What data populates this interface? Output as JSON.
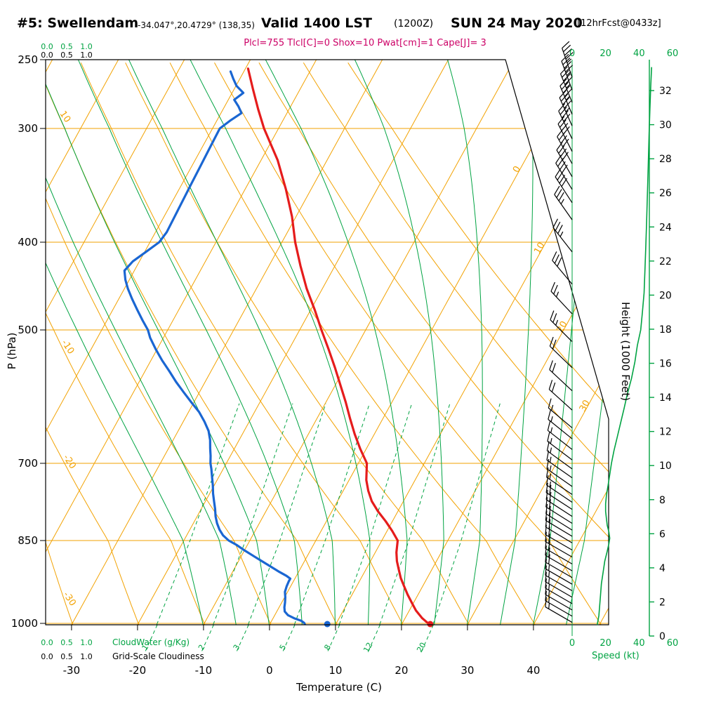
{
  "header": {
    "station": "#5: Swellendam",
    "coords": "-34.047°,20.4729° (138,35)",
    "valid_label": "Valid 1400 LST",
    "valid_zulu": "(1200Z)",
    "valid_date": "SUN 24 May 2020",
    "forecast_tag": "[12hrFcst@0433z]",
    "params_line": "Plcl=755 Tlcl[C]=0 Shox=10 Pwat[cm]=1 Cape[J]= 3"
  },
  "axes": {
    "pressure_axis_label": "P (hPa)",
    "pressure_ticks_hpa": [
      250,
      300,
      400,
      500,
      700,
      850,
      1000
    ],
    "temperature_axis_label": "Temperature (C)",
    "temperature_ticks_c": [
      -30,
      -20,
      -10,
      0,
      10,
      20,
      30,
      40
    ],
    "height_axis_label": "Height (1000 Feet)",
    "height_ticks_kft": [
      0,
      2,
      4,
      6,
      8,
      10,
      12,
      14,
      16,
      18,
      20,
      22,
      24,
      26,
      28,
      30,
      32
    ],
    "speed_axis_label": "Speed (kt)",
    "speed_ticks_kt": [
      0,
      20,
      40,
      60
    ],
    "cloudwater_label": "CloudWater (g/Kg)",
    "cloudiness_label": "Grid-Scale Cloudiness",
    "cloud_scale_values": [
      "0.0",
      "0.5",
      "1.0"
    ]
  },
  "colors": {
    "grid_orange": "#f2a202",
    "line_green": "#00a342",
    "temp_red": "#e51c1c",
    "dewpoint_blue": "#1a66d2",
    "params_magenta": "#cc0066",
    "ink_black": "#000000",
    "background": "#ffffff"
  },
  "chart_data": {
    "type": "line",
    "variant": "skew-t-log-p-sounding",
    "pressure_range_hpa": [
      250,
      1000
    ],
    "isotherm_range_c": [
      -80,
      50,
      10
    ],
    "dry_adiabat_theta_c": [
      -40,
      80,
      10
    ],
    "moist_adiabat_thetaw_c": [
      -10,
      45,
      5
    ],
    "isotherm_labels_right_c": [
      0,
      10,
      20,
      30
    ],
    "dry_adiabat_labels_left_c": [
      10,
      -10,
      -20,
      -30
    ],
    "mixing_ratio_lines_gkg": [
      1,
      2,
      3,
      5,
      8,
      12,
      20
    ],
    "temperature_profile": [
      [
        1002,
        24.2
      ],
      [
        990,
        22.6
      ],
      [
        975,
        21.0
      ],
      [
        960,
        19.7
      ],
      [
        945,
        18.4
      ],
      [
        930,
        17.2
      ],
      [
        915,
        16.0
      ],
      [
        900,
        15.0
      ],
      [
        885,
        14.0
      ],
      [
        870,
        13.2
      ],
      [
        850,
        12.4
      ],
      [
        830,
        10.8
      ],
      [
        810,
        9.0
      ],
      [
        790,
        7.0
      ],
      [
        770,
        5.2
      ],
      [
        750,
        3.8
      ],
      [
        730,
        2.6
      ],
      [
        700,
        1.3
      ],
      [
        675,
        -0.9
      ],
      [
        650,
        -3.0
      ],
      [
        625,
        -5.0
      ],
      [
        600,
        -7.0
      ],
      [
        575,
        -9.2
      ],
      [
        550,
        -11.5
      ],
      [
        525,
        -14.0
      ],
      [
        500,
        -16.7
      ],
      [
        475,
        -19.4
      ],
      [
        450,
        -22.4
      ],
      [
        425,
        -25.2
      ],
      [
        400,
        -28.0
      ],
      [
        375,
        -30.6
      ],
      [
        350,
        -33.8
      ],
      [
        325,
        -37.5
      ],
      [
        300,
        -42.2
      ],
      [
        285,
        -44.7
      ],
      [
        270,
        -47.2
      ],
      [
        256,
        -49.6
      ]
    ],
    "dewpoint_profile": [
      [
        1003,
        5.4
      ],
      [
        999,
        5.1
      ],
      [
        995,
        4.5
      ],
      [
        990,
        3.2
      ],
      [
        984,
        2.0
      ],
      [
        977,
        1.2
      ],
      [
        969,
        0.8
      ],
      [
        960,
        0.5
      ],
      [
        950,
        0.1
      ],
      [
        940,
        -0.4
      ],
      [
        930,
        -0.6
      ],
      [
        921,
        -0.7
      ],
      [
        916,
        -0.7
      ],
      [
        911,
        -1.5
      ],
      [
        904,
        -2.9
      ],
      [
        896,
        -4.4
      ],
      [
        887,
        -6.1
      ],
      [
        877,
        -8.0
      ],
      [
        867,
        -9.9
      ],
      [
        857,
        -11.7
      ],
      [
        850,
        -13.2
      ],
      [
        839,
        -14.5
      ],
      [
        827,
        -15.5
      ],
      [
        814,
        -16.4
      ],
      [
        800,
        -17.2
      ],
      [
        785,
        -17.9
      ],
      [
        770,
        -18.7
      ],
      [
        755,
        -19.5
      ],
      [
        740,
        -20.2
      ],
      [
        725,
        -21.0
      ],
      [
        710,
        -21.8
      ],
      [
        700,
        -22.4
      ],
      [
        687,
        -23.0
      ],
      [
        674,
        -23.7
      ],
      [
        660,
        -24.4
      ],
      [
        645,
        -25.4
      ],
      [
        630,
        -26.8
      ],
      [
        615,
        -28.4
      ],
      [
        600,
        -30.4
      ],
      [
        585,
        -32.4
      ],
      [
        570,
        -34.4
      ],
      [
        555,
        -36.3
      ],
      [
        540,
        -38.3
      ],
      [
        525,
        -40.2
      ],
      [
        510,
        -42.0
      ],
      [
        500,
        -43.0
      ],
      [
        488,
        -44.6
      ],
      [
        475,
        -46.3
      ],
      [
        462,
        -48.0
      ],
      [
        450,
        -49.5
      ],
      [
        440,
        -50.6
      ],
      [
        430,
        -51.5
      ],
      [
        420,
        -51.0
      ],
      [
        410,
        -49.8
      ],
      [
        400,
        -48.6
      ],
      [
        390,
        -48.3
      ],
      [
        375,
        -48.4
      ],
      [
        360,
        -48.5
      ],
      [
        345,
        -48.6
      ],
      [
        330,
        -48.7
      ],
      [
        315,
        -48.8
      ],
      [
        300,
        -48.9
      ],
      [
        294,
        -48.0
      ],
      [
        288,
        -46.9
      ],
      [
        283,
        -47.9
      ],
      [
        278,
        -49.1
      ],
      [
        273,
        -48.3
      ],
      [
        268,
        -49.9
      ],
      [
        263,
        -51.0
      ],
      [
        258,
        -52.0
      ]
    ],
    "surface_markers": {
      "pressure_hpa": 1000,
      "temperature_c": 24.3,
      "dewpoint_c": 8.7
    },
    "wind_barbs": [
      [
        262,
        341,
        47
      ],
      [
        271,
        340,
        46
      ],
      [
        280,
        338,
        46
      ],
      [
        289,
        337,
        45
      ],
      [
        298,
        336,
        45
      ],
      [
        308,
        334,
        44
      ],
      [
        318,
        333,
        43
      ],
      [
        328,
        331,
        42
      ],
      [
        339,
        330,
        42
      ],
      [
        350,
        328,
        41
      ],
      [
        362,
        327,
        40
      ],
      [
        378,
        325,
        38
      ],
      [
        410,
        322,
        35
      ],
      [
        445,
        320,
        32
      ],
      [
        480,
        317,
        29
      ],
      [
        515,
        315,
        27
      ],
      [
        550,
        314,
        24
      ],
      [
        583,
        313,
        22
      ],
      [
        612,
        312,
        20
      ],
      [
        640,
        310,
        18
      ],
      [
        658,
        309,
        17
      ],
      [
        676,
        308,
        16
      ],
      [
        694,
        307,
        16
      ],
      [
        710,
        306,
        15
      ],
      [
        726,
        305,
        16
      ],
      [
        742,
        305,
        17
      ],
      [
        757,
        304,
        18
      ],
      [
        772,
        304,
        19
      ],
      [
        786,
        303,
        20
      ],
      [
        800,
        303,
        21
      ],
      [
        814,
        302,
        21
      ],
      [
        828,
        302,
        22
      ],
      [
        841,
        301,
        23
      ],
      [
        854,
        301,
        23
      ],
      [
        866,
        300,
        22
      ],
      [
        878,
        300,
        22
      ],
      [
        890,
        300,
        21
      ],
      [
        902,
        300,
        20
      ],
      [
        914,
        300,
        20
      ],
      [
        926,
        300,
        19
      ],
      [
        938,
        300,
        18
      ],
      [
        950,
        300,
        18
      ],
      [
        962,
        300,
        17
      ],
      [
        974,
        300,
        17
      ],
      [
        986,
        300,
        16
      ],
      [
        998,
        300,
        15
      ]
    ],
    "wind_speed_profile": [
      [
        1003,
        15
      ],
      [
        985,
        16
      ],
      [
        965,
        16.5
      ],
      [
        945,
        17
      ],
      [
        925,
        17.5
      ],
      [
        905,
        18.5
      ],
      [
        885,
        19.5
      ],
      [
        868,
        21
      ],
      [
        855,
        22
      ],
      [
        845,
        22.5
      ],
      [
        832,
        22
      ],
      [
        818,
        21
      ],
      [
        805,
        20.5
      ],
      [
        790,
        20
      ],
      [
        775,
        20
      ],
      [
        758,
        20.5
      ],
      [
        740,
        21.5
      ],
      [
        720,
        22.5
      ],
      [
        700,
        23.5
      ],
      [
        678,
        25
      ],
      [
        655,
        27
      ],
      [
        632,
        29
      ],
      [
        610,
        31
      ],
      [
        588,
        33
      ],
      [
        565,
        35.5
      ],
      [
        542,
        37.5
      ],
      [
        520,
        39
      ],
      [
        500,
        41
      ],
      [
        478,
        42
      ],
      [
        455,
        43
      ],
      [
        430,
        43.5
      ],
      [
        405,
        44
      ],
      [
        380,
        44.5
      ],
      [
        355,
        45
      ],
      [
        330,
        45.5
      ],
      [
        305,
        46
      ],
      [
        285,
        46.5
      ],
      [
        268,
        47
      ],
      [
        255,
        47.5
      ]
    ]
  }
}
